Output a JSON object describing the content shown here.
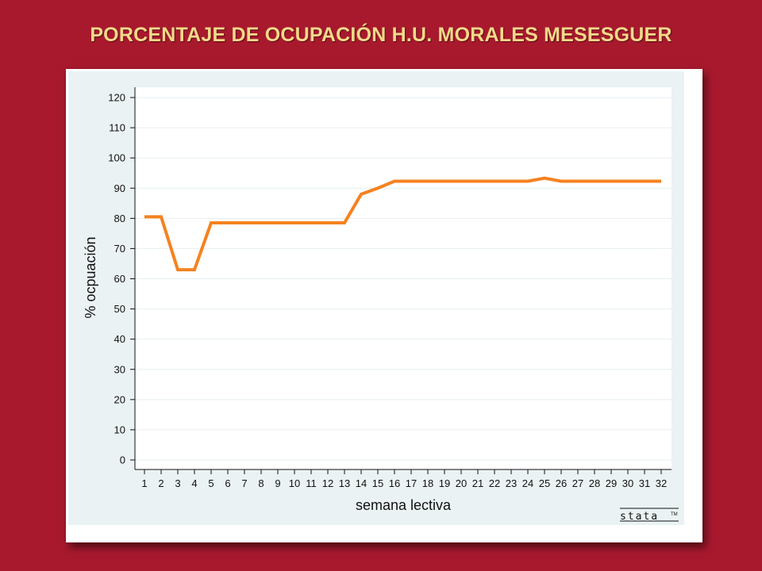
{
  "page": {
    "title": "PORCENTAJE DE OCUPACIÓN H.U. MORALES MESESGUER",
    "logo_text": "stata",
    "logo_tm": "TM"
  },
  "colors": {
    "background": "#a8192e",
    "title": "#f3d98a",
    "line": "#f58220",
    "plot_area": "#ffffff",
    "chart_background": "#eaf2f3"
  },
  "chart_data": {
    "type": "line",
    "title": "",
    "xlabel": "semana lectiva",
    "ylabel": "% ocpuación",
    "x": [
      1,
      2,
      3,
      4,
      5,
      6,
      7,
      8,
      9,
      10,
      11,
      12,
      13,
      14,
      15,
      16,
      17,
      18,
      19,
      20,
      21,
      22,
      23,
      24,
      25,
      26,
      27,
      28,
      29,
      30,
      31,
      32
    ],
    "series": [
      {
        "values": [
          80.5,
          80.5,
          63,
          63,
          78.5,
          78.5,
          78.5,
          78.5,
          78.5,
          78.5,
          78.5,
          78.5,
          78.5,
          88,
          90,
          92.3,
          92.3,
          92.3,
          92.3,
          92.3,
          92.3,
          92.3,
          92.3,
          92.3,
          93.3,
          92.3,
          92.3,
          92.3,
          92.3,
          92.3,
          92.3,
          92.3
        ]
      }
    ],
    "xticks": [
      "1",
      "2",
      "3",
      "4",
      "5",
      "6",
      "7",
      "8",
      "9",
      "10",
      "11",
      "12",
      "13",
      "14",
      "15",
      "16",
      "17",
      "18",
      "19",
      "20",
      "21",
      "22",
      "23",
      "24",
      "25",
      "26",
      "27",
      "28",
      "29",
      "30",
      "31",
      "32"
    ],
    "yticks": [
      "0",
      "10",
      "20",
      "30",
      "40",
      "50",
      "60",
      "70",
      "80",
      "90",
      "100",
      "110",
      "120"
    ],
    "ylim": [
      0,
      120
    ],
    "xlim": [
      1,
      32
    ],
    "grid": true,
    "legend": "none"
  }
}
